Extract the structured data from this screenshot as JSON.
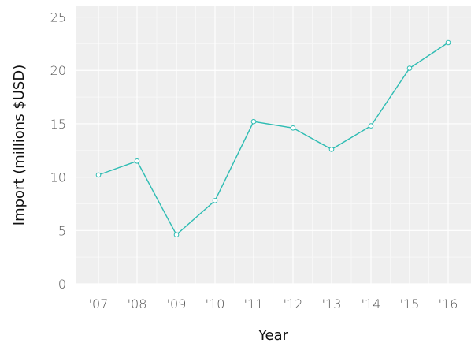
{
  "chart_data": {
    "type": "line",
    "xlabel": "Year",
    "ylabel": "Import (millions $USD)",
    "categories": [
      "'07",
      "'08",
      "'09",
      "'10",
      "'11",
      "'12",
      "'13",
      "'14",
      "'15",
      "'16"
    ],
    "x": [
      2007,
      2008,
      2009,
      2010,
      2011,
      2012,
      2013,
      2014,
      2015,
      2016
    ],
    "series": [
      {
        "values": [
          10.2,
          11.5,
          4.6,
          7.8,
          15.2,
          14.6,
          12.6,
          14.8,
          20.2,
          22.6
        ]
      }
    ],
    "ylim": [
      0,
      26
    ],
    "yticks": [
      0,
      5,
      10,
      15,
      20,
      25
    ],
    "grid": true,
    "colors": {
      "panel": "#efefef",
      "grid_major": "#ffffff",
      "grid_minor": "#f7f7f7",
      "line": "#2ebcb3",
      "marker_fill": "#ffffff"
    }
  }
}
